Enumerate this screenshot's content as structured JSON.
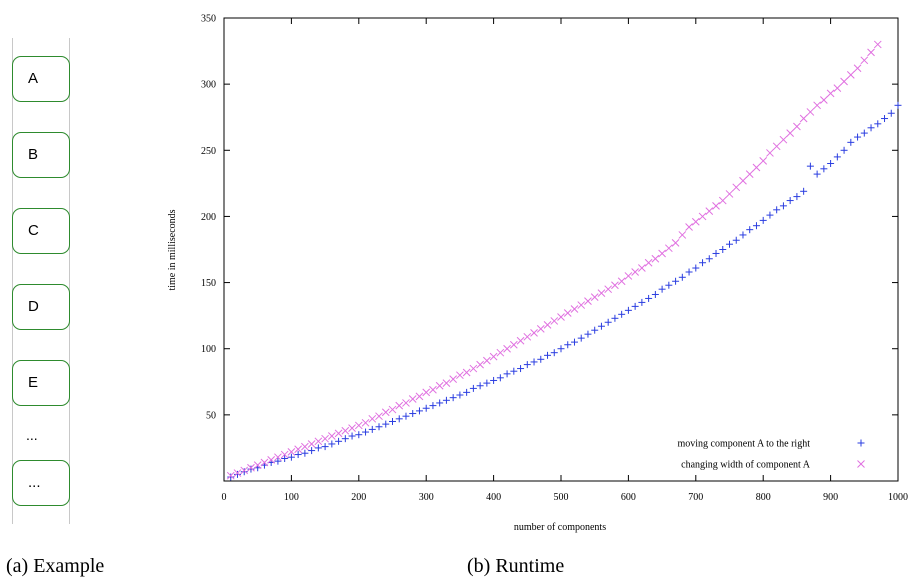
{
  "example": {
    "boxes": [
      "A",
      "B",
      "C",
      "D",
      "E",
      "..."
    ],
    "ellipsis": "...",
    "caption": "(a)  Example",
    "accent_color": "#2e8b2e"
  },
  "runtime": {
    "caption": "(b)  Runtime"
  },
  "chart_data": {
    "type": "scatter",
    "xlabel": "number of components",
    "ylabel": "time in milliseconds",
    "xlim": [
      0,
      1000
    ],
    "ylim": [
      0,
      350
    ],
    "xticks": [
      0,
      100,
      200,
      300,
      400,
      500,
      600,
      700,
      800,
      900,
      1000
    ],
    "yticks": [
      50,
      100,
      150,
      200,
      250,
      300,
      350
    ],
    "grid": false,
    "legend_position": "bottom-right",
    "series": [
      {
        "name": "moving component A to the right",
        "marker": "+",
        "color": "#2a3de0",
        "x": [
          10,
          20,
          30,
          40,
          50,
          60,
          70,
          80,
          90,
          100,
          110,
          120,
          130,
          140,
          150,
          160,
          170,
          180,
          190,
          200,
          210,
          220,
          230,
          240,
          250,
          260,
          270,
          280,
          290,
          300,
          310,
          320,
          330,
          340,
          350,
          360,
          370,
          380,
          390,
          400,
          410,
          420,
          430,
          440,
          450,
          460,
          470,
          480,
          490,
          500,
          510,
          520,
          530,
          540,
          550,
          560,
          570,
          580,
          590,
          600,
          610,
          620,
          630,
          640,
          650,
          660,
          670,
          680,
          690,
          700,
          710,
          720,
          730,
          740,
          750,
          760,
          770,
          780,
          790,
          800,
          810,
          820,
          830,
          840,
          850,
          860,
          870,
          880,
          890,
          900,
          910,
          920,
          930,
          940,
          950,
          960,
          970,
          980,
          990,
          1000
        ],
        "y": [
          3,
          5,
          7,
          9,
          10,
          12,
          14,
          15,
          17,
          18,
          20,
          21,
          23,
          25,
          26,
          28,
          30,
          32,
          34,
          35,
          37,
          39,
          41,
          43,
          45,
          47,
          49,
          51,
          53,
          55,
          57,
          59,
          61,
          63,
          65,
          67,
          70,
          72,
          74,
          76,
          78,
          81,
          83,
          85,
          88,
          90,
          92,
          95,
          97,
          100,
          103,
          105,
          108,
          111,
          114,
          117,
          120,
          123,
          126,
          129,
          132,
          135,
          138,
          141,
          145,
          148,
          151,
          154,
          158,
          161,
          165,
          168,
          172,
          175,
          179,
          182,
          186,
          190,
          193,
          197,
          201,
          205,
          208,
          212,
          215,
          219,
          238,
          232,
          236,
          240,
          245,
          250,
          256,
          260,
          263,
          267,
          270,
          274,
          278,
          284
        ]
      },
      {
        "name": "changing width of component A",
        "marker": "x",
        "color": "#e070e0",
        "x": [
          10,
          20,
          30,
          40,
          50,
          60,
          70,
          80,
          90,
          100,
          110,
          120,
          130,
          140,
          150,
          160,
          170,
          180,
          190,
          200,
          210,
          220,
          230,
          240,
          250,
          260,
          270,
          280,
          290,
          300,
          310,
          320,
          330,
          340,
          350,
          360,
          370,
          380,
          390,
          400,
          410,
          420,
          430,
          440,
          450,
          460,
          470,
          480,
          490,
          500,
          510,
          520,
          530,
          540,
          550,
          560,
          570,
          580,
          590,
          600,
          610,
          620,
          630,
          640,
          650,
          660,
          670,
          680,
          690,
          700,
          710,
          720,
          730,
          740,
          750,
          760,
          770,
          780,
          790,
          800,
          810,
          820,
          830,
          840,
          850,
          860,
          870,
          880,
          890,
          900,
          910,
          920,
          930,
          940,
          950,
          960,
          970
        ],
        "y": [
          4,
          6,
          8,
          10,
          12,
          14,
          16,
          18,
          20,
          22,
          24,
          26,
          28,
          30,
          32,
          34,
          36,
          38,
          40,
          42,
          44,
          47,
          49,
          52,
          54,
          57,
          59,
          62,
          64,
          67,
          69,
          72,
          74,
          77,
          80,
          82,
          85,
          88,
          91,
          94,
          97,
          100,
          103,
          106,
          109,
          112,
          115,
          118,
          121,
          124,
          127,
          130,
          133,
          136,
          139,
          142,
          145,
          148,
          151,
          155,
          158,
          161,
          165,
          168,
          172,
          176,
          180,
          186,
          192,
          196,
          200,
          204,
          208,
          212,
          217,
          222,
          227,
          232,
          237,
          242,
          248,
          253,
          258,
          263,
          268,
          274,
          279,
          284,
          288,
          293,
          297,
          302,
          307,
          312,
          318,
          324,
          330
        ]
      }
    ]
  }
}
